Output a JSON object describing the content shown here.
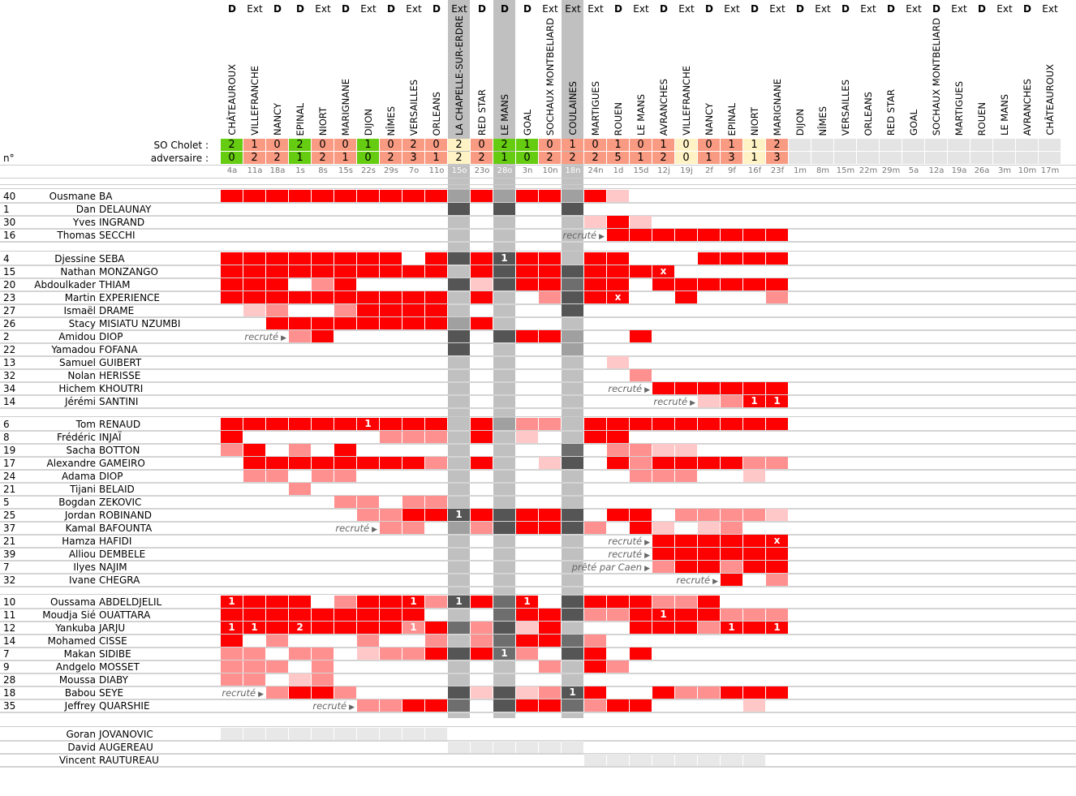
{
  "labels": {
    "team": "SO Cholet :",
    "opponent": "adversaire :",
    "number": "n°"
  },
  "colors": {
    "win": "#66cc11",
    "loss": "#f99b82",
    "draw": "#fff2c4",
    "full": "#ff0000",
    "partial": "#ff9090",
    "short": "#ffc8c8",
    "cup_full": "#555555",
    "cup_partial": "#6e6e6e",
    "cup_short": "#a0a0a0",
    "cup_stripe": "#c0c0c0",
    "staff": "#e8e8e8"
  },
  "legend_codes": {
    "R": "full",
    "M": "partial",
    "L": "short",
    ".": "none",
    "S": "staff"
  },
  "matches": [
    {
      "venue": "D",
      "opponent": "CHÂTEAUROUX",
      "date": "4a",
      "cup": false,
      "score": [
        2,
        0
      ]
    },
    {
      "venue": "Ext",
      "opponent": "VILLEFRANCHE",
      "date": "11a",
      "cup": false,
      "score": [
        1,
        2
      ]
    },
    {
      "venue": "D",
      "opponent": "NANCY",
      "date": "18a",
      "cup": false,
      "score": [
        0,
        2
      ]
    },
    {
      "venue": "D",
      "opponent": "EPINAL",
      "date": "1s",
      "cup": false,
      "score": [
        2,
        1
      ]
    },
    {
      "venue": "Ext",
      "opponent": "NIORT",
      "date": "8s",
      "cup": false,
      "score": [
        0,
        2
      ]
    },
    {
      "venue": "D",
      "opponent": "MARIGNANE",
      "date": "15s",
      "cup": false,
      "score": [
        0,
        1
      ]
    },
    {
      "venue": "Ext",
      "opponent": "DIJON",
      "date": "22s",
      "cup": false,
      "score": [
        1,
        0
      ]
    },
    {
      "venue": "D",
      "opponent": "NÎMES",
      "date": "29s",
      "cup": false,
      "score": [
        0,
        2
      ]
    },
    {
      "venue": "Ext",
      "opponent": "VERSAILLES",
      "date": "7o",
      "cup": false,
      "score": [
        2,
        3
      ]
    },
    {
      "venue": "D",
      "opponent": "ORLEANS",
      "date": "11o",
      "cup": false,
      "score": [
        0,
        1
      ]
    },
    {
      "venue": "Ext",
      "opponent": "LA CHAPELLE-SUR-ERDRE",
      "date": "15o",
      "cup": true,
      "score": [
        2,
        2
      ]
    },
    {
      "venue": "D",
      "opponent": "RED STAR",
      "date": "23o",
      "cup": false,
      "score": [
        0,
        2
      ]
    },
    {
      "venue": "D",
      "opponent": "LE MANS",
      "date": "28o",
      "cup": true,
      "score": [
        2,
        1
      ]
    },
    {
      "venue": "D",
      "opponent": "GOAL",
      "date": "3n",
      "cup": false,
      "score": [
        1,
        0
      ]
    },
    {
      "venue": "Ext",
      "opponent": "SOCHAUX MONTBELIARD",
      "date": "10n",
      "cup": false,
      "score": [
        0,
        2
      ]
    },
    {
      "venue": "Ext",
      "opponent": "COULAINES",
      "date": "18n",
      "cup": true,
      "score": [
        1,
        2
      ]
    },
    {
      "venue": "Ext",
      "opponent": "MARTIGUES",
      "date": "24n",
      "cup": false,
      "score": [
        0,
        2
      ]
    },
    {
      "venue": "D",
      "opponent": "ROUEN",
      "date": "1d",
      "cup": false,
      "score": [
        1,
        5
      ]
    },
    {
      "venue": "Ext",
      "opponent": "LE MANS",
      "date": "15d",
      "cup": false,
      "score": [
        0,
        1
      ]
    },
    {
      "venue": "D",
      "opponent": "AVRANCHES",
      "date": "12j",
      "cup": false,
      "score": [
        1,
        2
      ]
    },
    {
      "venue": "Ext",
      "opponent": "VILLEFRANCHE",
      "date": "19j",
      "cup": false,
      "score": [
        0,
        0
      ]
    },
    {
      "venue": "D",
      "opponent": "NANCY",
      "date": "2f",
      "cup": false,
      "score": [
        0,
        1
      ]
    },
    {
      "venue": "Ext",
      "opponent": "EPINAL",
      "date": "9f",
      "cup": false,
      "score": [
        1,
        3
      ]
    },
    {
      "venue": "D",
      "opponent": "NIORT",
      "date": "16f",
      "cup": false,
      "score": [
        1,
        1
      ]
    },
    {
      "venue": "Ext",
      "opponent": "MARIGNANE",
      "date": "23f",
      "cup": false,
      "score": [
        2,
        3
      ]
    },
    {
      "venue": "D",
      "opponent": "DIJON",
      "date": "1m",
      "cup": false,
      "score": null
    },
    {
      "venue": "Ext",
      "opponent": "NÎMES",
      "date": "8m",
      "cup": false,
      "score": null
    },
    {
      "venue": "D",
      "opponent": "VERSAILLES",
      "date": "15m",
      "cup": false,
      "score": null
    },
    {
      "venue": "Ext",
      "opponent": "ORLEANS",
      "date": "22m",
      "cup": false,
      "score": null
    },
    {
      "venue": "D",
      "opponent": "RED STAR",
      "date": "29m",
      "cup": false,
      "score": null
    },
    {
      "venue": "Ext",
      "opponent": "GOAL",
      "date": "5a",
      "cup": false,
      "score": null
    },
    {
      "venue": "D",
      "opponent": "SOCHAUX MONTBELIARD",
      "date": "12a",
      "cup": false,
      "score": null
    },
    {
      "venue": "Ext",
      "opponent": "MARTIGUES",
      "date": "19a",
      "cup": false,
      "score": null
    },
    {
      "venue": "D",
      "opponent": "ROUEN",
      "date": "26a",
      "cup": false,
      "score": null
    },
    {
      "venue": "Ext",
      "opponent": "LE MANS",
      "date": "3m",
      "cup": false,
      "score": null
    },
    {
      "venue": "D",
      "opponent": "AVRANCHES",
      "date": "10m",
      "cup": false,
      "score": null
    },
    {
      "venue": "Ext",
      "opponent": "CHÂTEAUROUX",
      "date": "17m",
      "cup": false,
      "score": null
    }
  ],
  "groups": [
    [
      {
        "num": "40",
        "first": "Ousmane",
        "last": "BA",
        "cells": "RRRRRRRRRRLRLRRLRL......."
      },
      {
        "num": "1",
        "first": "Dan",
        "last": "DELAUNAY",
        "cells": "..........R.R..R........."
      },
      {
        "num": "30",
        "first": "Yves",
        "last": "INGRAND",
        "cells": "................LRL......"
      },
      {
        "num": "16",
        "first": "Thomas",
        "last": "SECCHI",
        "cells": ".................RRRRRRRR",
        "note": {
          "text": "recruté",
          "col": 18
        }
      }
    ],
    [
      {
        "num": "4",
        "first": "Djessine",
        "last": "SEBA",
        "cells": "RRRRRRRR.RRRRRR.RR...RRRR",
        "goals": {
          "13": 1
        }
      },
      {
        "num": "15",
        "first": "Nathan",
        "last": "MONZANGO",
        "cells": "RRRRRRRRRR.RRRRRRRRR.....",
        "cards": [
          20
        ]
      },
      {
        "num": "20",
        "first": "Abdoulkader",
        "last": "THIAM",
        "cells": "RRR.MR....RLRRRMRR.RRRRRR"
      },
      {
        "num": "23",
        "first": "Martin",
        "last": "EXPERIENCE",
        "cells": "RRRRRRRRRR.R..MRRR..R...M",
        "cards": [
          18
        ]
      },
      {
        "num": "27",
        "first": "Ismaël",
        "last": "DRAME",
        "cells": ".LM..MRRRR.....R........."
      },
      {
        "num": "26",
        "first": "Stacy",
        "last": "MISIATU NZUMBI",
        "cells": "..RRRRRRRRLR............."
      },
      {
        "num": "2",
        "first": "Amidou",
        "last": "DIOP",
        "cells": "...MR.....R.RRRL..R......",
        "note": {
          "text": "recruté",
          "col": 4
        }
      },
      {
        "num": "22",
        "first": "Yamadou",
        "last": "FOFANA",
        "cells": "..........R....L........."
      },
      {
        "num": "13",
        "first": "Samuel",
        "last": "GUIBERT",
        "cells": ".................L......."
      },
      {
        "num": "32",
        "first": "Nolan",
        "last": "HERISSE",
        "cells": "..................M......"
      },
      {
        "num": "34",
        "first": "Hichem",
        "last": "KHOUTRI",
        "cells": "...................RRRRRR",
        "note": {
          "text": "recruté",
          "col": 20
        }
      },
      {
        "num": "14",
        "first": "Jérémi",
        "last": "SANTINI",
        "cells": ".....................LMRR",
        "goals": {
          "24": 1,
          "25": 1
        },
        "note": {
          "text": "recruté",
          "col": 22
        }
      }
    ],
    [
      {
        "num": "6",
        "first": "Tom",
        "last": "RENAUD",
        "cells": "RRRRRRRRRR.RLMM.RRRRRRRRR",
        "goals": {
          "7": 1
        }
      },
      {
        "num": "8",
        "first": "Frédéric",
        "last": "INJAÏ",
        "cells": "R......MMM.R.L..RR......."
      },
      {
        "num": "19",
        "first": "Sacha",
        "last": "BOTTON",
        "cells": "MR.M.R.........M.MMLL...."
      },
      {
        "num": "17",
        "first": "Alexandre",
        "last": "GAMEIRO",
        "cells": ".RRRRRRRRM.R..LR.RMRRRRMM"
      },
      {
        "num": "24",
        "first": "Adama",
        "last": "DIOP",
        "cells": ".MM.MM............MMM..L."
      },
      {
        "num": "21",
        "first": "Tijani",
        "last": "BELAID",
        "cells": "...M....................."
      },
      {
        "num": "5",
        "first": "Bogdan",
        "last": "ZEKOVIC",
        "cells": ".....MM.MM..............."
      },
      {
        "num": "25",
        "first": "Jordan",
        "last": "ROBINAND",
        "cells": "......MMRRRRRRRR.RR.MMMML",
        "goals": {
          "11": 1
        }
      },
      {
        "num": "37",
        "first": "Kamal",
        "last": "BAFOUNTA",
        "cells": ".......MM.LMRRRRM.RL.LM..",
        "note": {
          "text": "recruté",
          "col": 8
        }
      },
      {
        "num": "21",
        "first": "Hamza",
        "last": "HAFIDI",
        "cells": "...................RRRRRR",
        "cards": [
          25
        ],
        "note": {
          "text": "recruté",
          "col": 20
        }
      },
      {
        "num": "39",
        "first": "Alliou",
        "last": "DEMBELE",
        "cells": "...................RRRRRR",
        "note": {
          "text": "recruté",
          "col": 20
        }
      },
      {
        "num": "7",
        "first": "Ilyes",
        "last": "NAJIM",
        "cells": "...................MRRMRR",
        "note": {
          "text": "prêté par Caen",
          "col": 20
        }
      },
      {
        "num": "32",
        "first": "Ivane",
        "last": "CHEGRA",
        "cells": "......................R.M",
        "note": {
          "text": "recruté",
          "col": 23
        }
      }
    ],
    [
      {
        "num": "10",
        "first": "Oussama",
        "last": "ABDELDJELIL",
        "cells": "RRRR.MRRRMRRMR.RRRRMMR...",
        "goals": {
          "1": 1,
          "9": 1,
          "11": 1,
          "14": 1
        }
      },
      {
        "num": "11",
        "first": "Moudja Sié",
        "last": "OUATTARA",
        "cells": "RRRRRRRRR...MRRRMMRRRRMMM",
        "goals": {
          "20": 1
        }
      },
      {
        "num": "12",
        "first": "Yankuba",
        "last": "JARJU",
        "cells": "RRRRRRRRMRMMRLR...RRRMRRR",
        "goals": {
          "1": 1,
          "2": 1,
          "4": 2,
          "9": 1,
          "23": 1,
          "25": 1
        }
      },
      {
        "num": "14",
        "first": "Mohamed",
        "last": "CISSE",
        "cells": "R.M...M..M.MMRRMM........"
      },
      {
        "num": "7",
        "first": "Makan",
        "last": "SIDIBE",
        "cells": "MM.MM.LMMRRRMM.RR.R......",
        "goals": {
          "13": 1
        }
      },
      {
        "num": "9",
        "first": "Andgelo",
        "last": "MOSSET",
        "cells": "MMM.M.........M.RM......."
      },
      {
        "num": "28",
        "first": "Moussa",
        "last": "DIABY",
        "cells": "MM.LM...................."
      },
      {
        "num": "18",
        "first": "Babou",
        "last": "SEYE",
        "cells": "..MRRM....RLRLMRR..RMMRRR",
        "goals": {
          "16": 1
        },
        "note": {
          "text": "recruté",
          "col": 3
        }
      },
      {
        "num": "35",
        "first": "Jeffrey",
        "last": "QUARSHIE",
        "cells": "......MMRRM.RRRMMRR....L.",
        "note": {
          "text": "recruté",
          "col": 7
        }
      }
    ],
    [
      {
        "num": "",
        "first": "Goran",
        "last": "JOVANOVIC",
        "cells": "SSSSSSSSSS..............."
      },
      {
        "num": "",
        "first": "David",
        "last": "AUGEREAU",
        "cells": "..........SSSSSS........."
      },
      {
        "num": "",
        "first": "Vincent",
        "last": "RAUTUREAU",
        "cells": "................SSSSSSSS."
      }
    ]
  ]
}
